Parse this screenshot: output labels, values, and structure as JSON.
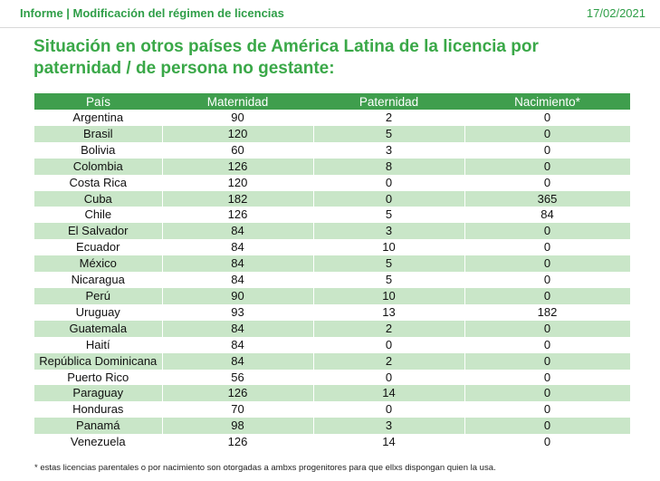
{
  "header": {
    "left": "Informe | Modificación del régimen de licencias",
    "date": "17/02/2021"
  },
  "title": "Situación en otros países de América Latina de la licencia por paternidad / de persona no gestante:",
  "table": {
    "columns": [
      "País",
      "Maternidad",
      "Paternidad",
      "Nacimiento*"
    ],
    "rows": [
      [
        "Argentina",
        "90",
        "2",
        "0"
      ],
      [
        "Brasil",
        "120",
        "5",
        "0"
      ],
      [
        "Bolivia",
        "60",
        "3",
        "0"
      ],
      [
        "Colombia",
        "126",
        "8",
        "0"
      ],
      [
        "Costa Rica",
        "120",
        "0",
        "0"
      ],
      [
        "Cuba",
        "182",
        "0",
        "365"
      ],
      [
        "Chile",
        "126",
        "5",
        "84"
      ],
      [
        "El Salvador",
        "84",
        "3",
        "0"
      ],
      [
        "Ecuador",
        "84",
        "10",
        "0"
      ],
      [
        "México",
        "84",
        "5",
        "0"
      ],
      [
        "Nicaragua",
        "84",
        "5",
        "0"
      ],
      [
        "Perú",
        "90",
        "10",
        "0"
      ],
      [
        "Uruguay",
        "93",
        "13",
        "182"
      ],
      [
        "Guatemala",
        "84",
        "2",
        "0"
      ],
      [
        "Haití",
        "84",
        "0",
        "0"
      ],
      [
        "República Dominicana",
        "84",
        "2",
        "0"
      ],
      [
        "Puerto Rico",
        "56",
        "0",
        "0"
      ],
      [
        "Paraguay",
        "126",
        "14",
        "0"
      ],
      [
        "Honduras",
        "70",
        "0",
        "0"
      ],
      [
        "Panamá",
        "98",
        "3",
        "0"
      ],
      [
        "Venezuela",
        "126",
        "14",
        "0"
      ]
    ]
  },
  "footnote": "* estas licencias parentales o por nacimiento son otorgadas a ambxs progenitores para que ellxs dispongan quien la usa.",
  "colors": {
    "accent": "#3aa848",
    "header_row": "#3f9e4d",
    "stripe": "#c9e6c8"
  }
}
